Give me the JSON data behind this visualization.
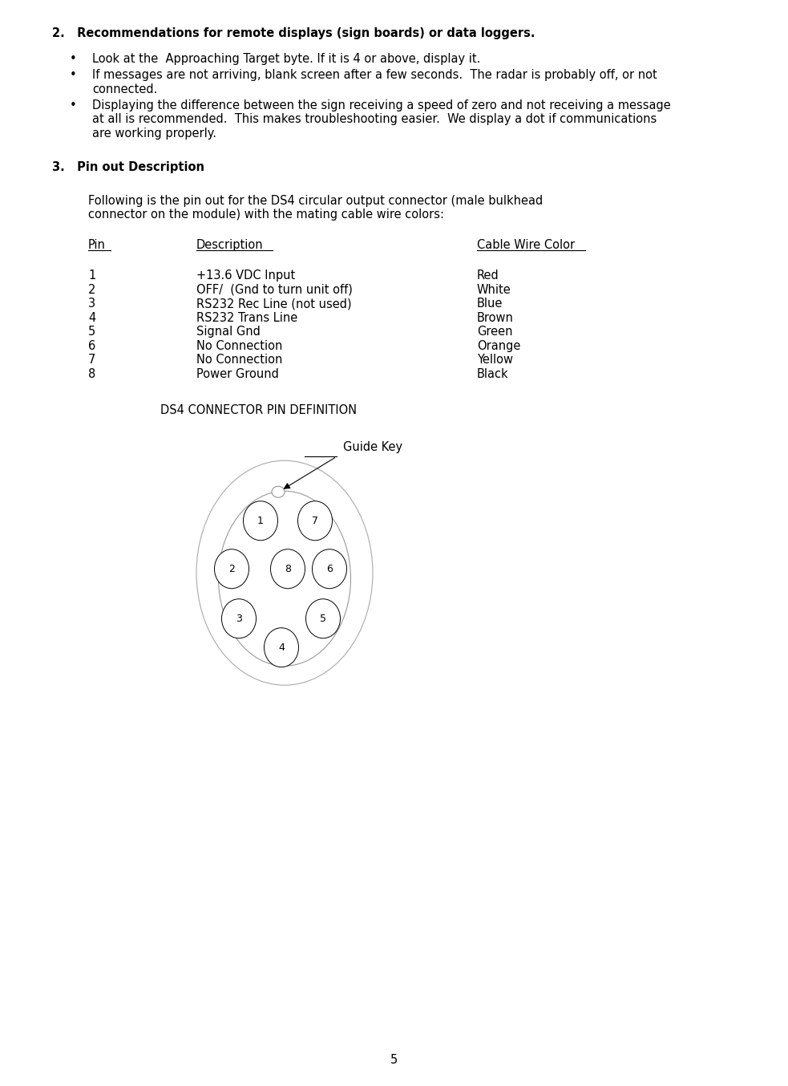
{
  "bg_color": "#ffffff",
  "text_color": "#000000",
  "section2_header": "2.   Recommendations for remote displays (sign boards) or data loggers.",
  "bullet1": "Look at the  Approaching Target byte. If it is 4 or above, display it.",
  "bullet2_line1": "If messages are not arriving, blank screen after a few seconds.  The radar is probably off, or not",
  "bullet2_line2": "connected.",
  "bullet3_line1": "Displaying the difference between the sign receiving a speed of zero and not receiving a message",
  "bullet3_line2": "at all is recommended.  This makes troubleshooting easier.  We display a dot if communications",
  "bullet3_line3": "are working properly.",
  "section3_header": "3.   Pin out Description",
  "intro_line1": "Following is the pin out for the DS4 circular output connector (male bulkhead",
  "intro_line2": "connector on the module) with the mating cable wire colors:",
  "col_pin": "Pin",
  "col_desc": "Description",
  "col_color": "Cable Wire Color",
  "pins": [
    {
      "num": "1",
      "desc": "+13.6 VDC Input",
      "color": "Red"
    },
    {
      "num": "2",
      "desc": "OFF/  (Gnd to turn unit off)",
      "color": "White"
    },
    {
      "num": "3",
      "desc": "RS232 Rec Line (not used)",
      "color": "Blue"
    },
    {
      "num": "4",
      "desc": "RS232 Trans Line",
      "color": "Brown"
    },
    {
      "num": "5",
      "desc": "Signal Gnd",
      "color": "Green"
    },
    {
      "num": "6",
      "desc": "No Connection",
      "color": "Orange"
    },
    {
      "num": "7",
      "desc": "No Connection",
      "color": "Yellow"
    },
    {
      "num": "8",
      "desc": "Power Ground",
      "color": "Black"
    }
  ],
  "diagram_title": "DS4 CONNECTOR PIN DEFINITION",
  "guide_key_label": "Guide Key",
  "page_number": "5"
}
